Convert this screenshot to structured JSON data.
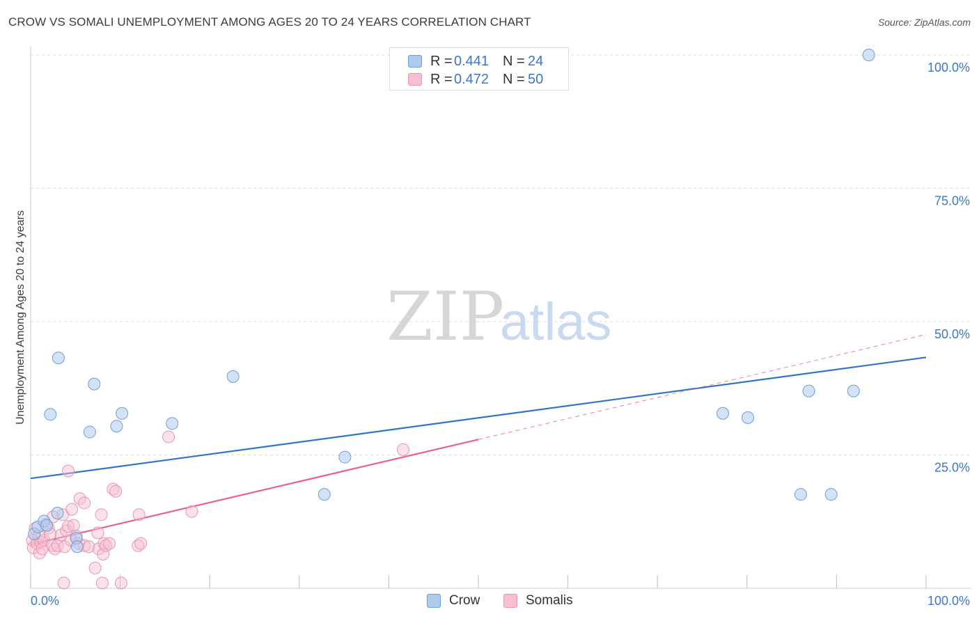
{
  "title": "CROW VS SOMALI UNEMPLOYMENT AMONG AGES 20 TO 24 YEARS CORRELATION CHART",
  "source": "Source: ZipAtlas.com",
  "watermark": {
    "zip": "ZIP",
    "atlas": "atlas"
  },
  "legend": {
    "series": [
      {
        "name": "Crow",
        "r_label": "R =",
        "r_value": "0.441",
        "n_label": "N =",
        "n_value": "24"
      },
      {
        "name": "Somalis",
        "r_label": "R =",
        "r_value": "0.472",
        "n_label": "N =",
        "n_value": "50"
      }
    ]
  },
  "colors": {
    "crow_fill": "#aecbee",
    "crow_stroke": "#6a9fd8",
    "crow_line": "#2f74c9",
    "somali_fill": "#f7bfd0",
    "somali_stroke": "#e995b0",
    "somali_line": "#e8608f",
    "grid": "#dddddd",
    "tick_label": "#3b78c9"
  },
  "chart_data": {
    "type": "scatter",
    "title": "CROW VS SOMALI UNEMPLOYMENT AMONG AGES 20 TO 24 YEARS CORRELATION CHART",
    "xlabel": "",
    "ylabel": "Unemployment Among Ages 20 to 24 years",
    "xlim": [
      0,
      100
    ],
    "ylim": [
      0,
      100
    ],
    "x_tick_labels": [
      "0.0%",
      "100.0%"
    ],
    "y_ticks": [
      25,
      50,
      75,
      100
    ],
    "y_tick_labels": [
      "25.0%",
      "50.0%",
      "75.0%",
      "100.0%"
    ],
    "grid": true,
    "series": [
      {
        "name": "Crow",
        "points": [
          [
            0.4,
            10.2
          ],
          [
            0.8,
            11.5
          ],
          [
            1.5,
            12.6
          ],
          [
            1.8,
            11.8
          ],
          [
            2.2,
            32.6
          ],
          [
            3.0,
            14.1
          ],
          [
            3.1,
            43.2
          ],
          [
            5.1,
            9.4
          ],
          [
            5.2,
            7.8
          ],
          [
            6.6,
            29.3
          ],
          [
            7.1,
            38.3
          ],
          [
            9.6,
            30.4
          ],
          [
            10.2,
            32.8
          ],
          [
            15.8,
            30.9
          ],
          [
            22.6,
            39.7
          ],
          [
            35.1,
            24.6
          ],
          [
            32.8,
            17.6
          ],
          [
            77.3,
            32.8
          ],
          [
            80.1,
            32.0
          ],
          [
            86.0,
            17.6
          ],
          [
            86.9,
            37.0
          ],
          [
            89.4,
            17.6
          ],
          [
            91.9,
            37.0
          ],
          [
            93.6,
            100.0
          ]
        ],
        "trend": {
          "x0": 0,
          "y0": 20.6,
          "x1": 100,
          "y1": 43.3
        }
      },
      {
        "name": "Somalis",
        "points": [
          [
            0.2,
            9.0
          ],
          [
            0.3,
            7.6
          ],
          [
            0.5,
            11.2
          ],
          [
            0.7,
            8.4
          ],
          [
            0.9,
            9.8
          ],
          [
            1.0,
            6.6
          ],
          [
            1.1,
            8.6
          ],
          [
            1.3,
            7.4
          ],
          [
            1.5,
            9.0
          ],
          [
            1.7,
            12.0
          ],
          [
            2.0,
            11.3
          ],
          [
            2.2,
            10.2
          ],
          [
            2.4,
            8.0
          ],
          [
            2.5,
            13.4
          ],
          [
            2.7,
            7.4
          ],
          [
            3.0,
            8.0
          ],
          [
            3.4,
            10.0
          ],
          [
            3.6,
            13.8
          ],
          [
            3.8,
            7.8
          ],
          [
            4.0,
            10.8
          ],
          [
            4.2,
            11.6
          ],
          [
            3.7,
            1.0
          ],
          [
            4.2,
            22.0
          ],
          [
            4.5,
            9.0
          ],
          [
            4.6,
            14.8
          ],
          [
            4.8,
            11.8
          ],
          [
            5.1,
            9.8
          ],
          [
            5.4,
            8.4
          ],
          [
            5.5,
            16.8
          ],
          [
            6.0,
            8.0
          ],
          [
            6.0,
            16.0
          ],
          [
            6.5,
            7.8
          ],
          [
            7.2,
            3.8
          ],
          [
            7.5,
            10.4
          ],
          [
            7.6,
            7.4
          ],
          [
            7.9,
            13.8
          ],
          [
            8.0,
            1.0
          ],
          [
            8.1,
            6.4
          ],
          [
            8.2,
            8.4
          ],
          [
            8.4,
            8.0
          ],
          [
            8.8,
            8.4
          ],
          [
            9.2,
            18.6
          ],
          [
            9.5,
            18.2
          ],
          [
            10.1,
            1.0
          ],
          [
            12.0,
            8.0
          ],
          [
            12.1,
            13.8
          ],
          [
            12.3,
            8.4
          ],
          [
            15.4,
            28.4
          ],
          [
            18.0,
            14.4
          ],
          [
            41.6,
            26.0
          ]
        ],
        "trend": {
          "x0": 0,
          "y0": 8.2,
          "x1": 100,
          "y1": 47.6,
          "solid_until_x": 50
        }
      }
    ]
  }
}
